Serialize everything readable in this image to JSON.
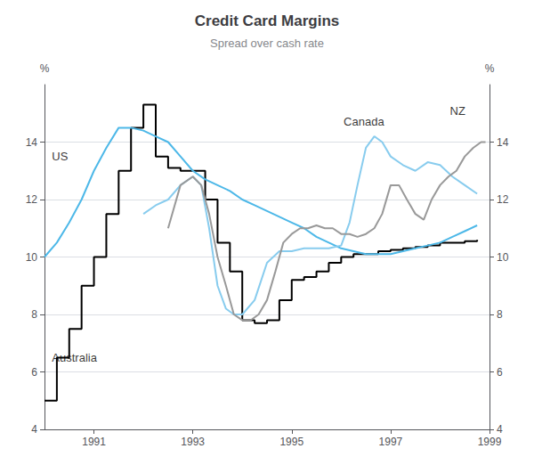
{
  "chart_data": {
    "type": "line",
    "title": "Credit Card Margins",
    "subtitle": "Spread over cash rate",
    "ylabel": "%",
    "y2label": "%",
    "xlim": [
      1990.0,
      1999.0
    ],
    "xticks": [
      1991,
      1993,
      1995,
      1997,
      1999
    ],
    "ylim": [
      4,
      16
    ],
    "yticks": [
      4,
      6,
      8,
      10,
      12,
      14
    ],
    "y2lim": [
      4,
      16
    ],
    "y2ticks": [
      4,
      6,
      8,
      10,
      12,
      14
    ],
    "grid": true,
    "series": [
      {
        "name": "Australia",
        "color": "#000000",
        "line_style": "step",
        "x": [
          1990.0,
          1990.25,
          1990.5,
          1990.75,
          1991.0,
          1991.25,
          1991.5,
          1991.75,
          1992.0,
          1992.25,
          1992.5,
          1992.75,
          1993.0,
          1993.25,
          1993.5,
          1993.75,
          1994.0,
          1994.25,
          1994.5,
          1994.75,
          1995.0,
          1995.25,
          1995.5,
          1995.75,
          1996.0,
          1996.25,
          1996.5,
          1996.75,
          1997.0,
          1997.25,
          1997.5,
          1997.75,
          1998.0,
          1998.25,
          1998.5,
          1998.75
        ],
        "values": [
          5.0,
          6.5,
          7.5,
          9.0,
          10.0,
          11.5,
          13.0,
          14.5,
          15.3,
          13.5,
          13.1,
          13.0,
          13.0,
          12.0,
          10.5,
          9.5,
          7.8,
          7.7,
          7.8,
          8.5,
          9.2,
          9.3,
          9.5,
          9.8,
          10.0,
          10.1,
          10.1,
          10.2,
          10.25,
          10.3,
          10.35,
          10.4,
          10.5,
          10.5,
          10.55,
          10.6
        ]
      },
      {
        "name": "US",
        "color": "#4db8e8",
        "line_style": "solid",
        "x": [
          1990.0,
          1990.25,
          1990.5,
          1990.75,
          1991.0,
          1991.25,
          1991.5,
          1991.75,
          1992.0,
          1992.25,
          1992.5,
          1992.75,
          1993.0,
          1993.25,
          1993.5,
          1993.75,
          1994.0,
          1994.25,
          1994.5,
          1994.75,
          1995.0,
          1995.25,
          1995.5,
          1995.75,
          1996.0,
          1996.25,
          1996.5,
          1996.75,
          1997.0,
          1997.25,
          1997.5,
          1997.75,
          1998.0,
          1998.25,
          1998.5,
          1998.75
        ],
        "values": [
          10.0,
          10.5,
          11.2,
          12.0,
          13.0,
          13.8,
          14.5,
          14.5,
          14.4,
          14.2,
          14.0,
          13.5,
          13.0,
          12.7,
          12.5,
          12.3,
          12.0,
          11.8,
          11.6,
          11.4,
          11.2,
          11.0,
          10.7,
          10.5,
          10.3,
          10.2,
          10.1,
          10.1,
          10.1,
          10.2,
          10.3,
          10.4,
          10.5,
          10.7,
          10.9,
          11.1
        ]
      },
      {
        "name": "Canada",
        "color": "#88ccee",
        "line_style": "solid",
        "x": [
          1992.0,
          1992.25,
          1992.5,
          1992.75,
          1993.0,
          1993.17,
          1993.33,
          1993.5,
          1993.67,
          1993.83,
          1994.0,
          1994.25,
          1994.5,
          1994.75,
          1995.0,
          1995.25,
          1995.5,
          1995.75,
          1996.0,
          1996.17,
          1996.33,
          1996.5,
          1996.67,
          1996.83,
          1997.0,
          1997.25,
          1997.5,
          1997.75,
          1998.0,
          1998.25,
          1998.5,
          1998.75
        ],
        "values": [
          11.5,
          11.8,
          12.0,
          12.5,
          12.8,
          12.5,
          11.0,
          9.0,
          8.2,
          8.0,
          8.0,
          8.5,
          9.8,
          10.2,
          10.2,
          10.3,
          10.3,
          10.3,
          10.4,
          11.2,
          12.5,
          13.8,
          14.2,
          14.0,
          13.5,
          13.2,
          13.0,
          13.3,
          13.2,
          12.8,
          12.5,
          12.2
        ]
      },
      {
        "name": "NZ",
        "color": "#999999",
        "line_style": "solid",
        "x": [
          1992.5,
          1992.75,
          1993.0,
          1993.17,
          1993.33,
          1993.5,
          1993.67,
          1993.83,
          1994.0,
          1994.17,
          1994.33,
          1994.5,
          1994.67,
          1994.83,
          1995.0,
          1995.17,
          1995.33,
          1995.5,
          1995.67,
          1995.83,
          1996.0,
          1996.17,
          1996.33,
          1996.5,
          1996.67,
          1996.83,
          1997.0,
          1997.17,
          1997.33,
          1997.5,
          1997.67,
          1997.83,
          1998.0,
          1998.17,
          1998.33,
          1998.5,
          1998.67,
          1998.83,
          1998.92
        ],
        "values": [
          11.0,
          12.5,
          12.8,
          12.5,
          11.5,
          10.0,
          9.0,
          8.0,
          7.8,
          7.8,
          8.0,
          8.5,
          9.5,
          10.5,
          10.8,
          11.0,
          11.0,
          11.1,
          11.0,
          11.0,
          10.8,
          10.8,
          10.7,
          10.8,
          11.0,
          11.5,
          12.5,
          12.5,
          12.0,
          11.5,
          11.3,
          12.0,
          12.5,
          12.8,
          13.0,
          13.5,
          13.8,
          14.0,
          14.0
        ]
      }
    ],
    "annotations": [
      {
        "text": "Australia",
        "x": 1990.15,
        "y": 6.5
      },
      {
        "text": "US",
        "x": 1990.15,
        "y": 13.5
      },
      {
        "text": "Canada",
        "x": 1996.05,
        "y": 14.7
      },
      {
        "text": "NZ",
        "x": 1998.2,
        "y": 15.1
      }
    ]
  }
}
